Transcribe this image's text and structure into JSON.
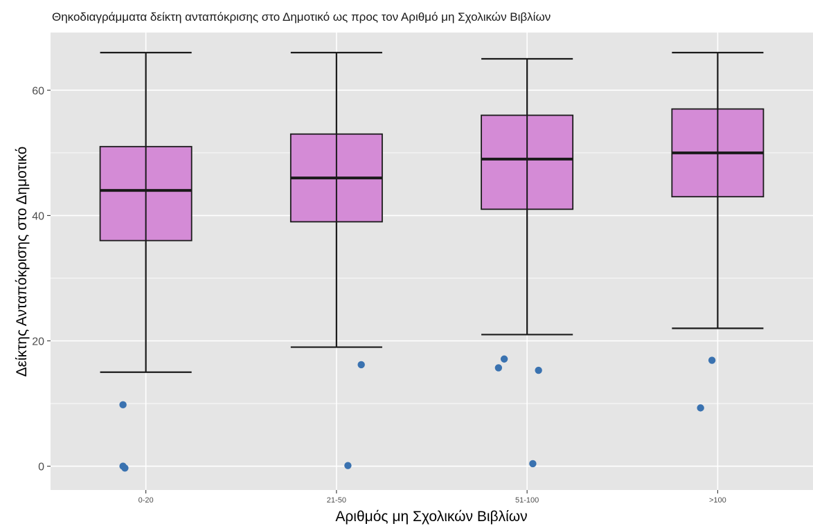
{
  "chart_data": {
    "type": "boxplot",
    "title": "Θηκοδιαγράμματα δείκτη ανταπόκρισης στο Δημοτικό ως προς τον Αριθμό μη Σχολικών Βιβλίων",
    "xlabel": "Αριθμός μη Σχολικών Βιβλίων",
    "ylabel": "Δείκτης Ανταπόκρισης στο Δημοτικό",
    "categories": [
      "0-20",
      "21-50",
      "51-100",
      ">100"
    ],
    "ylim": [
      -3.8,
      69.2
    ],
    "yticks": [
      0,
      20,
      40,
      60
    ],
    "grid": true,
    "colors": {
      "panel": "#e5e5e5",
      "grid": "#ffffff",
      "box_fill": "#d48bd6",
      "line": "#1a1a1a",
      "outlier": "#3a72b0"
    },
    "boxes": [
      {
        "category": "0-20",
        "whisker_low": 15,
        "q1": 36,
        "median": 44,
        "q3": 51,
        "whisker_high": 66,
        "outliers": [
          [
            -0.12,
            9.8
          ],
          [
            -0.12,
            0.0
          ],
          [
            -0.11,
            -0.3
          ]
        ]
      },
      {
        "category": "21-50",
        "whisker_low": 19,
        "q1": 39,
        "median": 46,
        "q3": 53,
        "whisker_high": 66,
        "outliers": [
          [
            0.13,
            16.2
          ],
          [
            0.06,
            0.1
          ]
        ]
      },
      {
        "category": "51-100",
        "whisker_low": 21,
        "q1": 41,
        "median": 49,
        "q3": 56,
        "whisker_high": 65,
        "outliers": [
          [
            -0.15,
            15.7
          ],
          [
            -0.12,
            17.1
          ],
          [
            0.06,
            15.3
          ],
          [
            0.03,
            0.4
          ]
        ]
      },
      {
        "category": ">100",
        "whisker_low": 22,
        "q1": 43,
        "median": 50,
        "q3": 57,
        "whisker_high": 66,
        "outliers": [
          [
            -0.03,
            16.9
          ],
          [
            -0.09,
            9.3
          ]
        ]
      }
    ]
  }
}
